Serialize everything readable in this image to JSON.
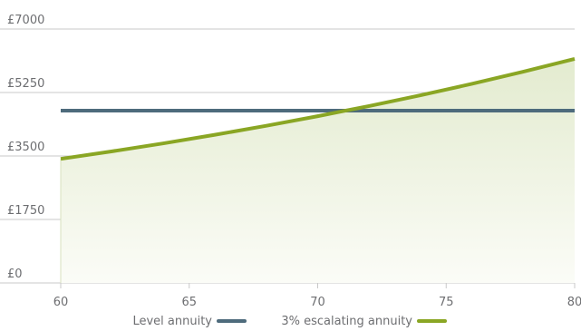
{
  "chart_data": {
    "type": "area",
    "x": [
      60,
      62,
      64,
      66,
      68,
      70,
      72,
      74,
      76,
      78,
      80
    ],
    "series": [
      {
        "name": "Level annuity",
        "values": [
          4750,
          4750,
          4750,
          4750,
          4750,
          4750,
          4750,
          4750,
          4750,
          4750,
          4750
        ],
        "color": "#4e6b7c",
        "fill": false
      },
      {
        "name": "3% escalating annuity",
        "values": [
          3420,
          3628,
          3849,
          4084,
          4333,
          4597,
          4877,
          5174,
          5489,
          5823,
          6177
        ],
        "color": "#8aa624",
        "fill": true
      }
    ],
    "xticks": [
      60,
      65,
      70,
      75,
      80
    ],
    "xtick_labels": [
      "60",
      "65",
      "70",
      "75",
      "80"
    ],
    "yticks": [
      0,
      1750,
      3500,
      5250,
      7000
    ],
    "ytick_labels": [
      "£0",
      "£1750",
      "£3500",
      "£5250",
      "£7000"
    ],
    "xlim": [
      60,
      80
    ],
    "ylim": [
      0,
      7000
    ],
    "grid": true,
    "legend_position": "bottom-center",
    "title": "",
    "xlabel": "",
    "ylabel": ""
  }
}
